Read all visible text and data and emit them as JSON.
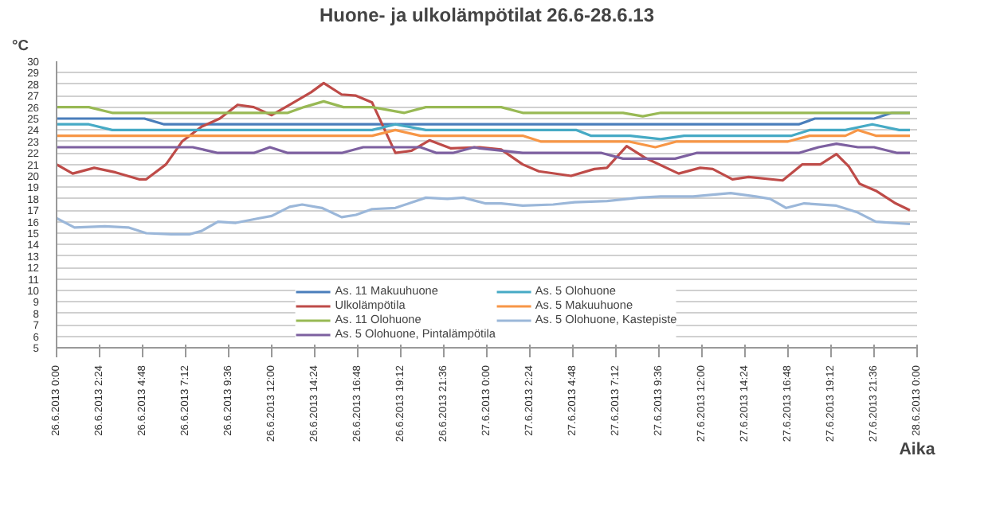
{
  "chart_data": {
    "type": "line",
    "title": "Huone- ja ulkolämpötilat 26.6-28.6.13",
    "xlabel": "Aika",
    "ylabel": "°C",
    "xlim": [
      "2013-06-26T00:00",
      "2013-06-28T00:00"
    ],
    "ylim": [
      5,
      30
    ],
    "xticks": [
      {
        "value": "2013-06-26T00:00",
        "label": "26.6.2013 0:00"
      },
      {
        "value": "2013-06-26T02:24",
        "label": "26.6.2013 2:24"
      },
      {
        "value": "2013-06-26T04:48",
        "label": "26.6.2013 4:48"
      },
      {
        "value": "2013-06-26T07:12",
        "label": "26.6.2013 7:12"
      },
      {
        "value": "2013-06-26T09:36",
        "label": "26.6.2013 9:36"
      },
      {
        "value": "2013-06-26T12:00",
        "label": "26.6.2013 12:00"
      },
      {
        "value": "2013-06-26T14:24",
        "label": "26.6.2013 14:24"
      },
      {
        "value": "2013-06-26T16:48",
        "label": "26.6.2013 16:48"
      },
      {
        "value": "2013-06-26T19:12",
        "label": "26.6.2013 19:12"
      },
      {
        "value": "2013-06-26T21:36",
        "label": "26.6.2013 21:36"
      },
      {
        "value": "2013-06-27T00:00",
        "label": "27.6.2013 0:00"
      },
      {
        "value": "2013-06-27T02:24",
        "label": "27.6.2013 2:24"
      },
      {
        "value": "2013-06-27T04:48",
        "label": "27.6.2013 4:48"
      },
      {
        "value": "2013-06-27T07:12",
        "label": "27.6.2013 7:12"
      },
      {
        "value": "2013-06-27T09:36",
        "label": "27.6.2013 9:36"
      },
      {
        "value": "2013-06-27T12:00",
        "label": "27.6.2013 12:00"
      },
      {
        "value": "2013-06-27T14:24",
        "label": "27.6.2013 14:24"
      },
      {
        "value": "2013-06-27T16:48",
        "label": "27.6.2013 16:48"
      },
      {
        "value": "2013-06-27T19:12",
        "label": "27.6.2013 19:12"
      },
      {
        "value": "2013-06-27T21:36",
        "label": "27.6.2013 21:36"
      },
      {
        "value": "2013-06-28T00:00",
        "label": "28.6.2013 0:00"
      }
    ],
    "yticks": [
      5,
      6,
      7,
      8,
      9,
      10,
      11,
      12,
      13,
      14,
      15,
      16,
      17,
      18,
      19,
      20,
      21,
      22,
      23,
      24,
      25,
      26,
      27,
      28,
      29,
      30
    ],
    "grid": "y",
    "legend": "bottom",
    "marker": "none",
    "line_style": "solid",
    "series": [
      {
        "name": "As. 11 Makuuhuone",
        "color": "#4a7ebb",
        "x": [
          "2013-06-26T00:00",
          "2013-06-26T04:54",
          "2013-06-26T06:00",
          "2013-06-27T17:24",
          "2013-06-27T18:18",
          "2013-06-27T21:36",
          "2013-06-27T22:36",
          "2013-06-27T23:36"
        ],
        "values": [
          25,
          25,
          24.5,
          24.5,
          25,
          25,
          25.5,
          25.5
        ]
      },
      {
        "name": "Ulkolämpötila",
        "color": "#be4b48",
        "x": [
          "2013-06-26T00:00",
          "2013-06-26T00:54",
          "2013-06-26T02:06",
          "2013-06-26T03:18",
          "2013-06-26T04:36",
          "2013-06-26T05:00",
          "2013-06-26T06:06",
          "2013-06-26T07:00",
          "2013-06-26T08:06",
          "2013-06-26T09:06",
          "2013-06-26T10:06",
          "2013-06-26T11:00",
          "2013-06-26T12:00",
          "2013-06-26T13:06",
          "2013-06-26T14:12",
          "2013-06-26T14:54",
          "2013-06-26T15:54",
          "2013-06-26T16:42",
          "2013-06-26T17:36",
          "2013-06-26T18:54",
          "2013-06-26T19:48",
          "2013-06-26T20:48",
          "2013-06-26T22:00",
          "2013-06-26T23:36",
          "2013-06-27T00:48",
          "2013-06-27T02:00",
          "2013-06-27T02:54",
          "2013-06-27T04:42",
          "2013-06-27T06:00",
          "2013-06-27T06:42",
          "2013-06-27T07:48",
          "2013-06-27T08:48",
          "2013-06-27T10:42",
          "2013-06-27T11:54",
          "2013-06-27T12:36",
          "2013-06-27T13:42",
          "2013-06-27T14:36",
          "2013-06-27T16:30",
          "2013-06-27T17:36",
          "2013-06-27T18:36",
          "2013-06-27T19:30",
          "2013-06-27T20:12",
          "2013-06-27T20:48",
          "2013-06-27T21:42",
          "2013-06-27T22:48",
          "2013-06-27T23:36"
        ],
        "values": [
          21,
          20.2,
          20.7,
          20.3,
          19.7,
          19.7,
          21,
          23,
          24.3,
          25,
          26.2,
          26,
          25.3,
          26.3,
          27.3,
          28.1,
          27.1,
          27,
          26.4,
          22,
          22.2,
          23.1,
          22.4,
          22.5,
          22.3,
          21,
          20.4,
          20,
          20.6,
          20.7,
          22.6,
          21.6,
          20.2,
          20.7,
          20.6,
          19.7,
          19.9,
          19.6,
          21,
          21,
          21.9,
          20.8,
          19.3,
          18.7,
          17.6,
          17
        ]
      },
      {
        "name": "As. 11 Olohuone",
        "color": "#98b954",
        "x": [
          "2013-06-26T00:00",
          "2013-06-26T01:48",
          "2013-06-26T03:06",
          "2013-06-26T12:54",
          "2013-06-26T13:48",
          "2013-06-26T14:54",
          "2013-06-26T16:00",
          "2013-06-26T17:36",
          "2013-06-26T19:24",
          "2013-06-26T20:36",
          "2013-06-27T00:48",
          "2013-06-27T02:00",
          "2013-06-27T07:36",
          "2013-06-27T08:42",
          "2013-06-27T09:42",
          "2013-06-27T21:36",
          "2013-06-27T22:36",
          "2013-06-27T23:36"
        ],
        "values": [
          26,
          26,
          25.5,
          25.5,
          26,
          26.5,
          26,
          26,
          25.5,
          26,
          26,
          25.5,
          25.5,
          25.2,
          25.5,
          25.5,
          25.5,
          25.5
        ]
      },
      {
        "name": "As. 5 Olohuone, Pintalämpötila",
        "color": "#7d60a0",
        "x": [
          "2013-06-26T00:00",
          "2013-06-26T07:36",
          "2013-06-26T09:00",
          "2013-06-26T11:00",
          "2013-06-26T11:54",
          "2013-06-26T12:54",
          "2013-06-26T15:54",
          "2013-06-26T17:06",
          "2013-06-26T20:18",
          "2013-06-26T21:12",
          "2013-06-26T22:06",
          "2013-06-26T23:18",
          "2013-06-26T23:36",
          "2013-06-27T02:00",
          "2013-06-27T06:24",
          "2013-06-27T07:36",
          "2013-06-27T10:30",
          "2013-06-27T11:42",
          "2013-06-27T17:24",
          "2013-06-27T18:30",
          "2013-06-27T19:30",
          "2013-06-27T20:42",
          "2013-06-27T21:36",
          "2013-06-27T22:54",
          "2013-06-27T23:36"
        ],
        "values": [
          22.5,
          22.5,
          22,
          22,
          22.5,
          22,
          22,
          22.5,
          22.5,
          22,
          22,
          22.5,
          22.4,
          22,
          22,
          21.5,
          21.5,
          22,
          22,
          22.5,
          22.8,
          22.5,
          22.5,
          22,
          22
        ]
      },
      {
        "name": "As. 5 Olohuone",
        "color": "#46aac5",
        "x": [
          "2013-06-26T00:00",
          "2013-06-26T01:48",
          "2013-06-26T03:06",
          "2013-06-26T17:36",
          "2013-06-26T18:54",
          "2013-06-26T20:36",
          "2013-06-27T05:00",
          "2013-06-27T05:48",
          "2013-06-27T08:00",
          "2013-06-27T09:42",
          "2013-06-27T11:00",
          "2013-06-27T17:00",
          "2013-06-27T18:00",
          "2013-06-27T20:00",
          "2013-06-27T21:30",
          "2013-06-27T23:00",
          "2013-06-27T23:36"
        ],
        "values": [
          24.5,
          24.5,
          24,
          24,
          24.5,
          24,
          24,
          23.5,
          23.5,
          23.2,
          23.5,
          23.5,
          24,
          24,
          24.5,
          24,
          24
        ]
      },
      {
        "name": "As. 5 Makuuhuone",
        "color": "#f79646",
        "x": [
          "2013-06-26T00:00",
          "2013-06-26T17:36",
          "2013-06-26T18:54",
          "2013-06-26T20:18",
          "2013-06-27T02:00",
          "2013-06-27T03:00",
          "2013-06-27T07:54",
          "2013-06-27T09:24",
          "2013-06-27T10:36",
          "2013-06-27T16:48",
          "2013-06-27T18:00",
          "2013-06-27T20:00",
          "2013-06-27T20:42",
          "2013-06-27T21:42",
          "2013-06-27T23:36"
        ],
        "values": [
          23.5,
          23.5,
          24,
          23.5,
          23.5,
          23,
          23,
          22.5,
          23,
          23,
          23.5,
          23.5,
          24,
          23.5,
          23.5
        ]
      },
      {
        "name": "As. 5 Olohuone, Kastepiste",
        "color": "#9bb7d9",
        "x": [
          "2013-06-26T00:00",
          "2013-06-26T01:00",
          "2013-06-26T02:42",
          "2013-06-26T04:00",
          "2013-06-26T05:00",
          "2013-06-26T06:24",
          "2013-06-26T07:24",
          "2013-06-26T08:06",
          "2013-06-26T09:00",
          "2013-06-26T10:00",
          "2013-06-26T11:18",
          "2013-06-26T12:00",
          "2013-06-26T13:00",
          "2013-06-26T13:42",
          "2013-06-26T14:48",
          "2013-06-26T15:54",
          "2013-06-26T16:42",
          "2013-06-26T17:36",
          "2013-06-26T18:54",
          "2013-06-26T20:36",
          "2013-06-26T21:48",
          "2013-06-26T22:42",
          "2013-06-26T23:54",
          "2013-06-27T00:48",
          "2013-06-27T02:00",
          "2013-06-27T03:42",
          "2013-06-27T04:54",
          "2013-06-27T06:42",
          "2013-06-27T08:30",
          "2013-06-27T09:42",
          "2013-06-27T11:30",
          "2013-06-27T13:36",
          "2013-06-27T15:00",
          "2013-06-27T15:48",
          "2013-06-27T16:42",
          "2013-06-27T17:42",
          "2013-06-27T19:30",
          "2013-06-27T20:42",
          "2013-06-27T21:42",
          "2013-06-27T23:36"
        ],
        "values": [
          16.3,
          15.5,
          15.6,
          15.5,
          15,
          14.9,
          14.9,
          15.2,
          16,
          15.9,
          16.3,
          16.5,
          17.3,
          17.5,
          17.2,
          16.4,
          16.6,
          17.1,
          17.2,
          18.1,
          18,
          18.1,
          17.6,
          17.6,
          17.4,
          17.5,
          17.7,
          17.8,
          18.1,
          18.2,
          18.2,
          18.5,
          18.2,
          18,
          17.2,
          17.6,
          17.4,
          16.8,
          16,
          15.8
        ]
      }
    ]
  }
}
